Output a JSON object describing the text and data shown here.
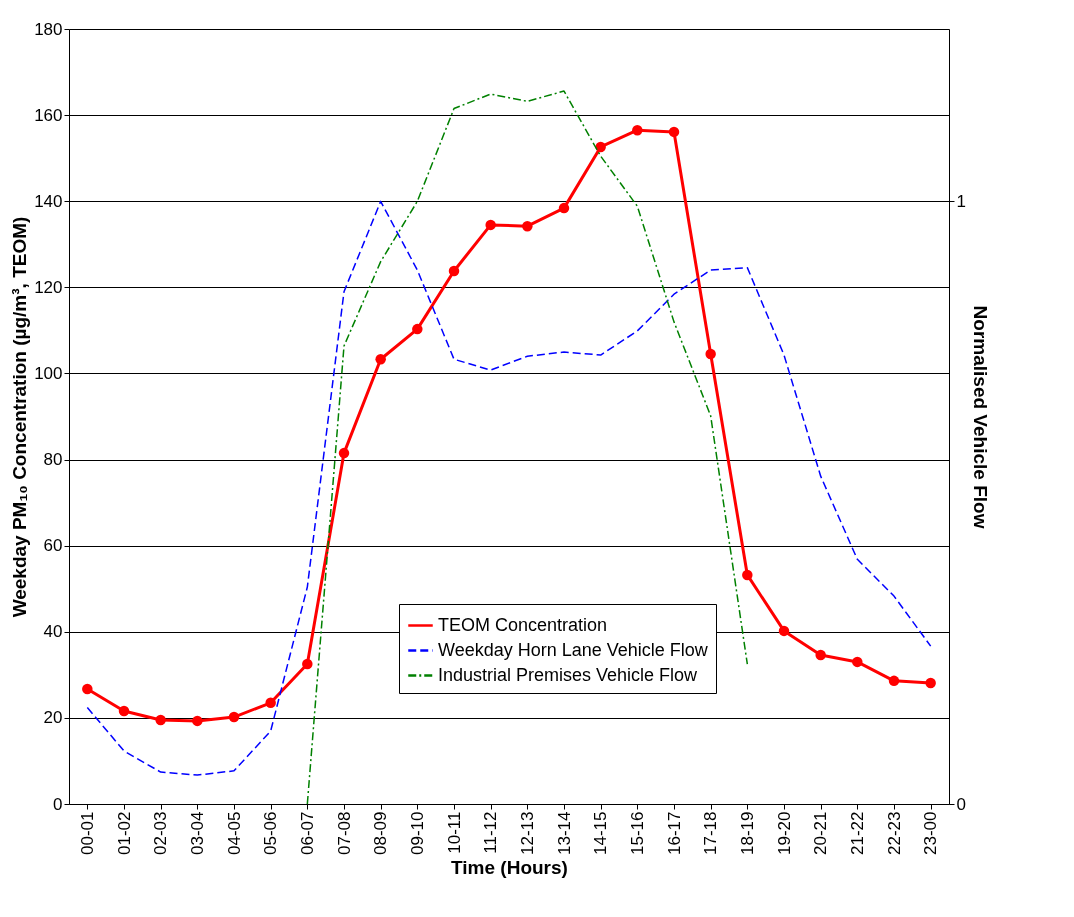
{
  "chart_data": {
    "type": "line",
    "xlabel": "Time (Hours)",
    "ylabel": "Weekday PM₁₀ Concentration (µg/m³, TEOM)",
    "y2label": "Normalised Vehicle Flow",
    "categories": [
      "00-01",
      "01-02",
      "02-03",
      "03-04",
      "04-05",
      "05-06",
      "06-07",
      "07-08",
      "08-09",
      "09-10",
      "10-11",
      "11-12",
      "12-13",
      "13-14",
      "14-15",
      "15-16",
      "16-17",
      "17-18",
      "18-19",
      "19-20",
      "20-21",
      "21-22",
      "22-23",
      "23-00"
    ],
    "series": [
      {
        "name": "TEOM Concentration",
        "color": "#ff0000",
        "marker": "circle",
        "line_style": "solid",
        "values": [
          26.7,
          21.6,
          19.5,
          19.3,
          20.2,
          23.5,
          32.5,
          81.5,
          103.3,
          110.3,
          123.8,
          134.5,
          134.2,
          138.4,
          152.6,
          156.5,
          156.1,
          104.5,
          53.2,
          40.2,
          34.6,
          33.0,
          28.6,
          28.1
        ]
      },
      {
        "name": "Weekday Horn Lane Vehicle Flow",
        "color": "#0000ff",
        "marker": "none",
        "line_style": "dashed",
        "axis": "y2",
        "values": [
          0.16,
          0.088,
          0.053,
          0.048,
          0.055,
          0.121,
          0.36,
          0.85,
          1.0,
          0.886,
          0.738,
          0.72,
          0.743,
          0.75,
          0.745,
          0.785,
          0.846,
          0.886,
          0.89,
          0.745,
          0.544,
          0.406,
          0.345,
          0.262
        ]
      },
      {
        "name": "Industrial Premises Vehicle Flow",
        "color": "#008000",
        "marker": "none",
        "line_style": "dashdot",
        "axis": "y2",
        "values": [
          null,
          null,
          null,
          null,
          null,
          null,
          0,
          0.76,
          0.9,
          1.0,
          1.154,
          1.178,
          1.166,
          1.183,
          1.075,
          0.992,
          0.8,
          0.644,
          0.232,
          null,
          null,
          null,
          null,
          null
        ]
      }
    ],
    "ylim": [
      0,
      180
    ],
    "yticks": [
      0,
      20,
      40,
      60,
      80,
      100,
      120,
      140,
      160,
      180
    ],
    "y2lim": [
      0,
      1.286
    ],
    "y2ticks": [
      0,
      1
    ],
    "grid": "y",
    "legend": "bottom"
  }
}
